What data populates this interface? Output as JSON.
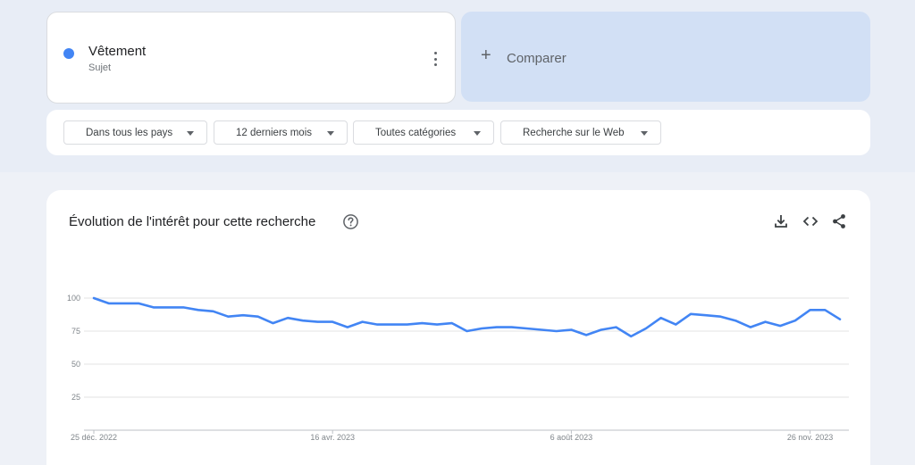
{
  "search_term": {
    "name": "Vêtement",
    "type": "Sujet",
    "color": "#4285f4",
    "menu_icon": "more-vert-icon"
  },
  "compare": {
    "icon": "+",
    "label": "Comparer"
  },
  "filters": [
    {
      "label": "Dans tous les pays"
    },
    {
      "label": "12 derniers mois"
    },
    {
      "label": "Toutes catégories"
    },
    {
      "label": "Recherche sur le Web"
    }
  ],
  "chart_section": {
    "title": "Évolution de l'intérêt pour cette recherche",
    "help_icon": "help-circle-icon",
    "actions": [
      "download-icon",
      "embed-code-icon",
      "share-icon"
    ]
  },
  "chart_data": {
    "type": "line",
    "title": "",
    "xlabel": "",
    "ylabel": "",
    "ylim": [
      0,
      100
    ],
    "yticks": [
      25,
      50,
      75,
      100
    ],
    "grid": true,
    "xtick_labels": [
      "25 déc. 2022",
      "16 avr. 2023",
      "6 août 2023",
      "26 nov. 2023"
    ],
    "xtick_indices": [
      0,
      16,
      32,
      48
    ],
    "series": [
      {
        "color": "#4285f4",
        "values": [
          100,
          96,
          96,
          96,
          93,
          93,
          93,
          91,
          90,
          86,
          87,
          86,
          81,
          85,
          83,
          82,
          82,
          78,
          82,
          80,
          80,
          80,
          81,
          80,
          81,
          75,
          77,
          78,
          78,
          77,
          76,
          75,
          76,
          72,
          76,
          78,
          71,
          77,
          85,
          80,
          88,
          87,
          86,
          83,
          78,
          82,
          79,
          83,
          91,
          91,
          84
        ]
      }
    ]
  }
}
